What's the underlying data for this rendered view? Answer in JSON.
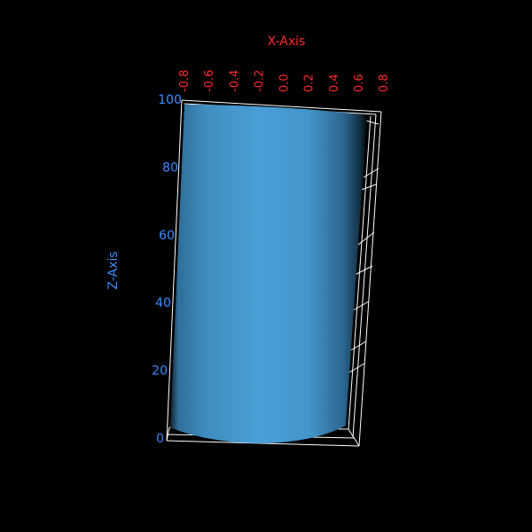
{
  "chart_data": {
    "type": "surface3d",
    "shape": "cylinder",
    "x_axis": {
      "label": "X-Axis",
      "ticks": [
        "-0.8",
        "-0.6",
        "-0.4",
        "-0.2",
        "0.0",
        "0.2",
        "0.4",
        "0.6",
        "0.8"
      ],
      "range": [
        -0.8,
        0.8
      ]
    },
    "z_axis": {
      "label": "Z-Axis",
      "ticks": [
        "0",
        "20",
        "40",
        "60",
        "80",
        "100"
      ],
      "range": [
        0,
        100
      ]
    },
    "surface": {
      "radius": 0.8,
      "z_min": 0,
      "z_max": 100,
      "color": "#4a9fd6"
    },
    "colors": {
      "background": "#000000",
      "x_axis_text": "#ff2a2a",
      "z_axis_text": "#3c8dff",
      "box_lines": "#ffffff"
    }
  }
}
